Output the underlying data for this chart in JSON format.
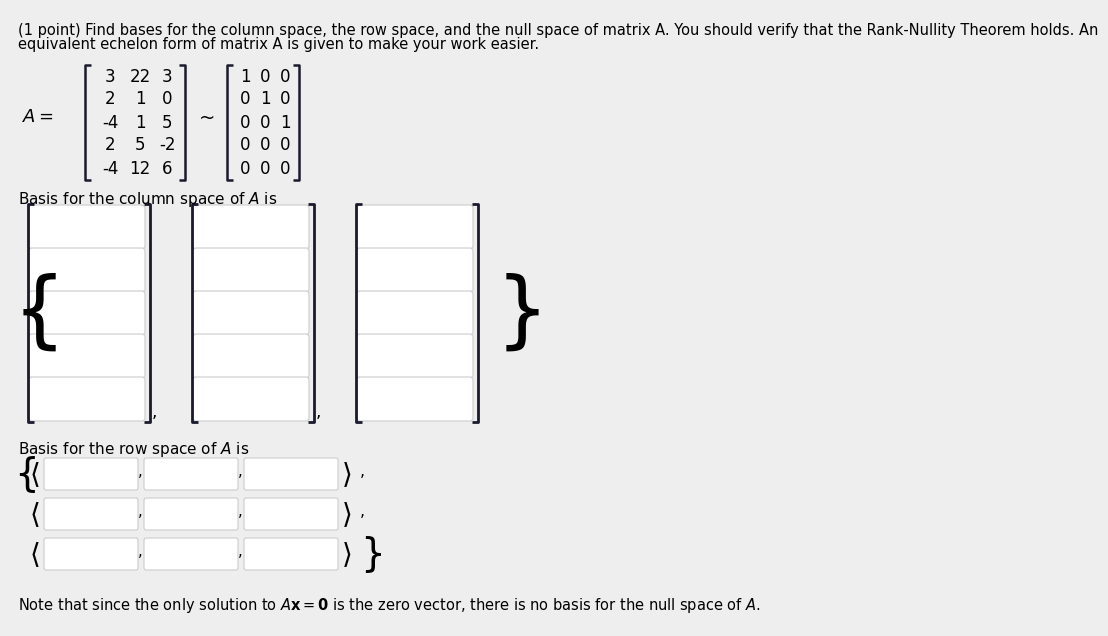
{
  "background_color": "#eeeeee",
  "title_line1": "(1 point) Find bases for the column space, the row space, and the null space of matrix A. You should verify that the Rank-Nullity Theorem holds. An",
  "title_line2": "equivalent echelon form of matrix A is given to make your work easier.",
  "matrix_A": [
    [
      "3",
      "22",
      "3"
    ],
    [
      "2",
      "1",
      "0"
    ],
    [
      "-4",
      "1",
      "5"
    ],
    [
      "2",
      "5",
      "-2"
    ],
    [
      "-4",
      "12",
      "6"
    ]
  ],
  "matrix_B": [
    [
      "1",
      "0",
      "0"
    ],
    [
      "0",
      "1",
      "0"
    ],
    [
      "0",
      "0",
      "1"
    ],
    [
      "0",
      "0",
      "0"
    ],
    [
      "0",
      "0",
      "0"
    ]
  ],
  "box_fill": "#ffffff",
  "box_edge": "#cccccc",
  "bracket_color": "#1a1a2e",
  "text_color": "#000000",
  "font_size": 10.5,
  "mat_font_size": 12
}
